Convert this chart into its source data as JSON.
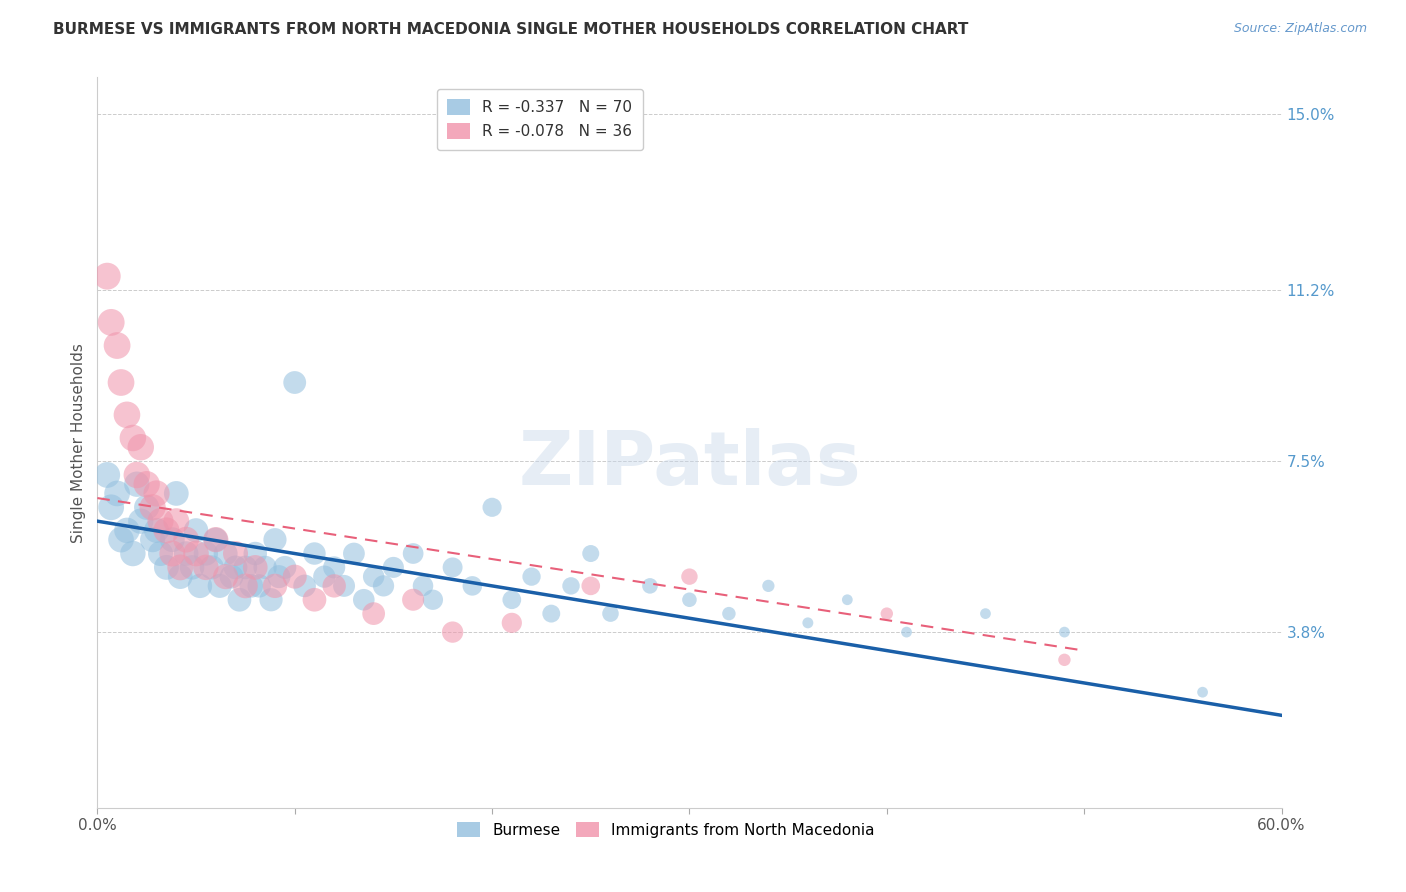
{
  "title": "BURMESE VS IMMIGRANTS FROM NORTH MACEDONIA SINGLE MOTHER HOUSEHOLDS CORRELATION CHART",
  "source": "Source: ZipAtlas.com",
  "ylabel": "Single Mother Households",
  "xlim": [
    0.0,
    0.6
  ],
  "ylim": [
    0.0,
    0.158
  ],
  "right_yticks": [
    0.038,
    0.075,
    0.112,
    0.15
  ],
  "right_yticklabels": [
    "3.8%",
    "7.5%",
    "11.2%",
    "15.0%"
  ],
  "watermark": "ZIPatlas",
  "legend_labels": [
    "Burmese",
    "Immigrants from North Macedonia"
  ],
  "blue_color": "#92bfde",
  "pink_color": "#f093aa",
  "blue_line_color": "#1a5fa8",
  "pink_line_color": "#e8607a",
  "burmese_x": [
    0.005,
    0.007,
    0.01,
    0.012,
    0.015,
    0.018,
    0.02,
    0.022,
    0.025,
    0.028,
    0.03,
    0.032,
    0.035,
    0.038,
    0.04,
    0.042,
    0.045,
    0.048,
    0.05,
    0.052,
    0.055,
    0.058,
    0.06,
    0.062,
    0.065,
    0.068,
    0.07,
    0.072,
    0.075,
    0.078,
    0.08,
    0.082,
    0.085,
    0.088,
    0.09,
    0.092,
    0.095,
    0.1,
    0.105,
    0.11,
    0.115,
    0.12,
    0.125,
    0.13,
    0.135,
    0.14,
    0.145,
    0.15,
    0.16,
    0.165,
    0.17,
    0.18,
    0.19,
    0.2,
    0.21,
    0.22,
    0.23,
    0.24,
    0.25,
    0.26,
    0.28,
    0.3,
    0.32,
    0.34,
    0.36,
    0.38,
    0.41,
    0.45,
    0.49,
    0.56
  ],
  "burmese_y": [
    0.072,
    0.065,
    0.068,
    0.058,
    0.06,
    0.055,
    0.07,
    0.062,
    0.065,
    0.058,
    0.06,
    0.055,
    0.052,
    0.058,
    0.068,
    0.05,
    0.055,
    0.052,
    0.06,
    0.048,
    0.055,
    0.052,
    0.058,
    0.048,
    0.055,
    0.05,
    0.052,
    0.045,
    0.052,
    0.048,
    0.055,
    0.048,
    0.052,
    0.045,
    0.058,
    0.05,
    0.052,
    0.092,
    0.048,
    0.055,
    0.05,
    0.052,
    0.048,
    0.055,
    0.045,
    0.05,
    0.048,
    0.052,
    0.055,
    0.048,
    0.045,
    0.052,
    0.048,
    0.065,
    0.045,
    0.05,
    0.042,
    0.048,
    0.055,
    0.042,
    0.048,
    0.045,
    0.042,
    0.048,
    0.04,
    0.045,
    0.038,
    0.042,
    0.038,
    0.025
  ],
  "macedonia_x": [
    0.005,
    0.007,
    0.01,
    0.012,
    0.015,
    0.018,
    0.02,
    0.022,
    0.025,
    0.028,
    0.03,
    0.032,
    0.035,
    0.038,
    0.04,
    0.042,
    0.045,
    0.05,
    0.055,
    0.06,
    0.065,
    0.07,
    0.075,
    0.08,
    0.09,
    0.1,
    0.11,
    0.12,
    0.14,
    0.16,
    0.18,
    0.21,
    0.25,
    0.3,
    0.4,
    0.49
  ],
  "macedonia_y": [
    0.115,
    0.105,
    0.1,
    0.092,
    0.085,
    0.08,
    0.072,
    0.078,
    0.07,
    0.065,
    0.068,
    0.062,
    0.06,
    0.055,
    0.062,
    0.052,
    0.058,
    0.055,
    0.052,
    0.058,
    0.05,
    0.055,
    0.048,
    0.052,
    0.048,
    0.05,
    0.045,
    0.048,
    0.042,
    0.045,
    0.038,
    0.04,
    0.048,
    0.05,
    0.042,
    0.032
  ],
  "burmese_r": -0.337,
  "burmese_n": 70,
  "macedonia_r": -0.078,
  "macedonia_n": 36,
  "blue_line_x0": 0.0,
  "blue_line_y0": 0.062,
  "blue_line_x1": 0.6,
  "blue_line_y1": 0.02,
  "pink_line_x0": 0.0,
  "pink_line_y0": 0.067,
  "pink_line_x1": 0.5,
  "pink_line_y1": 0.034
}
